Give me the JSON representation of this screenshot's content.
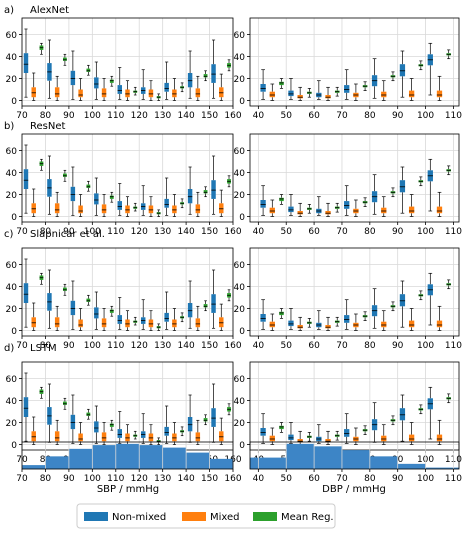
{
  "chart_data": {
    "type": "box",
    "rows": [
      {
        "letter": "a)",
        "label": "AlexNet"
      },
      {
        "letter": "b)",
        "label": "ResNet"
      },
      {
        "letter": "c)",
        "label": "Slapnicar et al."
      },
      {
        "letter": "d)",
        "label": "LSTM"
      }
    ],
    "sbp": {
      "xlabel": "SBP / mmHg",
      "xlim": [
        70,
        160
      ],
      "xticks": [
        70,
        80,
        90,
        100,
        110,
        120,
        130,
        140,
        150,
        160
      ],
      "ylim": [
        -5,
        75
      ],
      "yticks": [
        0,
        20,
        40,
        60
      ],
      "bin_centers": [
        75,
        85,
        95,
        105,
        115,
        125,
        135,
        145,
        155
      ]
    },
    "dbp": {
      "xlabel": "DBP / mmHg",
      "xlim": [
        37,
        112
      ],
      "xticks": [
        40,
        50,
        60,
        70,
        80,
        90,
        100,
        110
      ],
      "ylim": [
        -5,
        75
      ],
      "yticks": [
        0,
        20,
        40,
        60
      ],
      "bin_centers": [
        45,
        55,
        65,
        75,
        85,
        95,
        105
      ]
    },
    "legend": {
      "placement": "bottom-center",
      "entries": [
        {
          "label": "Non-mixed",
          "color": "#1f77b4"
        },
        {
          "label": "Mixed",
          "color": "#ff7f0e"
        },
        {
          "label": "Mean Reg.",
          "color": "#2ca02c"
        }
      ]
    },
    "series_stats": {
      "sbp": {
        "nonmixed": [
          {
            "whislo": 3,
            "q1": 25,
            "med": 33,
            "q3": 43,
            "whishi": 65
          },
          {
            "whislo": 2,
            "q1": 18,
            "med": 26,
            "q3": 34,
            "whishi": 55
          },
          {
            "whislo": 1,
            "q1": 14,
            "med": 20,
            "q3": 27,
            "whishi": 45
          },
          {
            "whislo": 1,
            "q1": 11,
            "med": 15,
            "q3": 21,
            "whishi": 35
          },
          {
            "whislo": 1,
            "q1": 6,
            "med": 9,
            "q3": 14,
            "whishi": 30
          },
          {
            "whislo": 1,
            "q1": 6,
            "med": 9,
            "q3": 12,
            "whishi": 28
          },
          {
            "whislo": 1,
            "q1": 8,
            "med": 11,
            "q3": 16,
            "whishi": 35
          },
          {
            "whislo": 2,
            "q1": 12,
            "med": 18,
            "q3": 25,
            "whishi": 45
          },
          {
            "whislo": 2,
            "q1": 16,
            "med": 24,
            "q3": 33,
            "whishi": 55
          }
        ],
        "mixed": [
          {
            "whislo": 0,
            "q1": 3,
            "med": 7,
            "q3": 12,
            "whishi": 25
          },
          {
            "whislo": 0,
            "q1": 3,
            "med": 6,
            "q3": 12,
            "whishi": 22
          },
          {
            "whislo": 0,
            "q1": 3,
            "med": 5,
            "q3": 10,
            "whishi": 20
          },
          {
            "whislo": 0,
            "q1": 3,
            "med": 6,
            "q3": 11,
            "whishi": 20
          },
          {
            "whislo": 0,
            "q1": 3,
            "med": 6,
            "q3": 10,
            "whishi": 18
          },
          {
            "whislo": 0,
            "q1": 3,
            "med": 6,
            "q3": 10,
            "whishi": 18
          },
          {
            "whislo": 0,
            "q1": 3,
            "med": 6,
            "q3": 10,
            "whishi": 20
          },
          {
            "whislo": 0,
            "q1": 3,
            "med": 6,
            "q3": 11,
            "whishi": 22
          },
          {
            "whislo": 0,
            "q1": 3,
            "med": 7,
            "q3": 12,
            "whishi": 24
          }
        ],
        "meanreg": [
          {
            "whislo": 42,
            "q1": 46,
            "med": 48,
            "q3": 50,
            "whishi": 52
          },
          {
            "whislo": 32,
            "q1": 36,
            "med": 37,
            "q3": 39,
            "whishi": 42
          },
          {
            "whislo": 23,
            "q1": 26,
            "med": 27,
            "q3": 29,
            "whishi": 32
          },
          {
            "whislo": 13,
            "q1": 16,
            "med": 18,
            "q3": 19,
            "whishi": 22
          },
          {
            "whislo": 5,
            "q1": 7,
            "med": 8,
            "q3": 9,
            "whishi": 12
          },
          {
            "whislo": 0,
            "q1": 2,
            "med": 3,
            "q3": 4,
            "whishi": 6
          },
          {
            "whislo": 8,
            "q1": 11,
            "med": 12,
            "q3": 13,
            "whishi": 16
          },
          {
            "whislo": 18,
            "q1": 21,
            "med": 22,
            "q3": 24,
            "whishi": 27
          },
          {
            "whislo": 27,
            "q1": 30,
            "med": 32,
            "q3": 34,
            "whishi": 37
          }
        ]
      },
      "dbp": {
        "nonmixed": [
          {
            "whislo": 1,
            "q1": 8,
            "med": 11,
            "q3": 15,
            "whishi": 28
          },
          {
            "whislo": 1,
            "q1": 4,
            "med": 6,
            "q3": 9,
            "whishi": 20
          },
          {
            "whislo": 1,
            "q1": 3,
            "med": 5,
            "q3": 7,
            "whishi": 18
          },
          {
            "whislo": 1,
            "q1": 7,
            "med": 10,
            "q3": 14,
            "whishi": 28
          },
          {
            "whislo": 2,
            "q1": 13,
            "med": 18,
            "q3": 23,
            "whishi": 38
          },
          {
            "whislo": 3,
            "q1": 22,
            "med": 27,
            "q3": 33,
            "whishi": 45
          },
          {
            "whislo": 5,
            "q1": 32,
            "med": 37,
            "q3": 42,
            "whishi": 52
          }
        ],
        "mixed": [
          {
            "whislo": 0,
            "q1": 3,
            "med": 5,
            "q3": 8,
            "whishi": 15
          },
          {
            "whislo": 0,
            "q1": 2,
            "med": 3,
            "q3": 5,
            "whishi": 12
          },
          {
            "whislo": 0,
            "q1": 2,
            "med": 3,
            "q3": 5,
            "whishi": 12
          },
          {
            "whislo": 0,
            "q1": 3,
            "med": 5,
            "q3": 7,
            "whishi": 15
          },
          {
            "whislo": 0,
            "q1": 3,
            "med": 5,
            "q3": 8,
            "whishi": 18
          },
          {
            "whislo": 0,
            "q1": 3,
            "med": 5,
            "q3": 9,
            "whishi": 20
          },
          {
            "whislo": 0,
            "q1": 3,
            "med": 5,
            "q3": 9,
            "whishi": 22
          }
        ],
        "meanreg": [
          {
            "whislo": 11,
            "q1": 14,
            "med": 16,
            "q3": 17,
            "whishi": 20
          },
          {
            "whislo": 3,
            "q1": 6,
            "med": 7,
            "q3": 8,
            "whishi": 11
          },
          {
            "whislo": 4,
            "q1": 7,
            "med": 8,
            "q3": 9,
            "whishi": 12
          },
          {
            "whislo": 9,
            "q1": 12,
            "med": 13,
            "q3": 14,
            "whishi": 17
          },
          {
            "whislo": 18,
            "q1": 21,
            "med": 22,
            "q3": 23,
            "whishi": 26
          },
          {
            "whislo": 28,
            "q1": 31,
            "med": 32,
            "q3": 33,
            "whishi": 36
          },
          {
            "whislo": 38,
            "q1": 41,
            "med": 42,
            "q3": 43,
            "whishi": 46
          }
        ]
      }
    },
    "histograms": {
      "sbp": {
        "bins": [
          70,
          80,
          90,
          100,
          110,
          120,
          130,
          140,
          150,
          160
        ],
        "heights": [
          0.15,
          0.5,
          0.8,
          0.95,
          1.0,
          0.95,
          0.85,
          0.65,
          0.4
        ]
      },
      "dbp": {
        "bins": [
          37,
          50,
          60,
          70,
          80,
          90,
          100,
          112
        ],
        "heights": [
          0.45,
          1.0,
          0.9,
          0.75,
          0.5,
          0.2,
          0.05
        ]
      }
    }
  }
}
